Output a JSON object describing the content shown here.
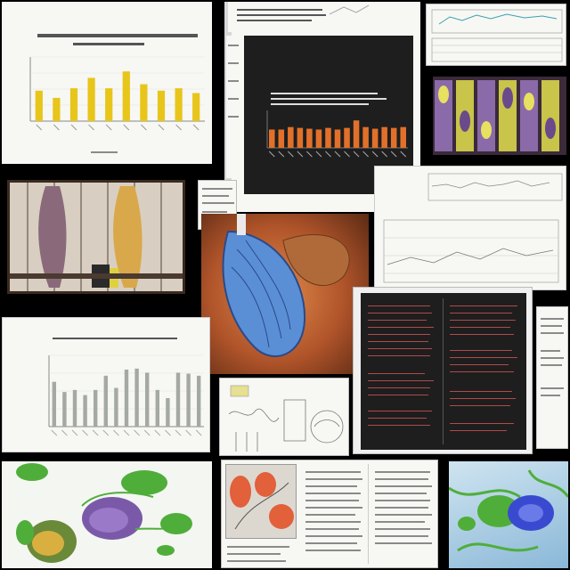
{
  "collage": {
    "panels": [
      {
        "name": "yellow-bar-chart",
        "kind": "chart"
      },
      {
        "name": "dark-orange-bar-chart",
        "kind": "chart"
      },
      {
        "name": "line-chart-sheet",
        "kind": "chart"
      },
      {
        "name": "purple-yellow-pattern",
        "kind": "illustration"
      },
      {
        "name": "anatomical-muscle-panel",
        "kind": "illustration"
      },
      {
        "name": "blue-organ-illustration",
        "kind": "illustration"
      },
      {
        "name": "dark-text-document",
        "kind": "document"
      },
      {
        "name": "gray-bar-chart",
        "kind": "chart"
      },
      {
        "name": "sketch-diagram-sheet",
        "kind": "diagram"
      },
      {
        "name": "green-3d-molecules",
        "kind": "illustration"
      },
      {
        "name": "red-figure-paper",
        "kind": "paper"
      },
      {
        "name": "green-blue-3d-render",
        "kind": "illustration"
      }
    ]
  },
  "colors": {
    "yellow_bar": "#e8c51a",
    "orange_bar": "#e2702a",
    "gray_bar": "#a4a9a4",
    "organ_blue": "#5a8fd6",
    "organ_bg": "#c2642a",
    "green": "#4fae3a",
    "purple": "#7a5aa8"
  },
  "chart_data": [
    {
      "type": "bar",
      "categories": [
        "",
        "",
        "",
        "",
        "",
        "",
        "",
        "",
        "",
        ""
      ],
      "values": [
        38,
        29,
        41,
        54,
        41,
        62,
        46,
        38,
        41,
        35
      ],
      "ylim": [
        0,
        80
      ],
      "grid": true,
      "legend": "none"
    },
    {
      "type": "bar",
      "categories": [
        "",
        "",
        "",
        "",
        "",
        "",
        "",
        "",
        "",
        "",
        "",
        "",
        "",
        "",
        ""
      ],
      "values": [
        22,
        22,
        25,
        24,
        23,
        22,
        24,
        22,
        24,
        33,
        25,
        23,
        25,
        24,
        25
      ],
      "ylim": [
        0,
        45
      ],
      "grid": false,
      "legend": "none"
    },
    {
      "type": "bar",
      "categories": [
        "",
        "",
        "",
        "",
        "",
        "",
        "",
        "",
        "",
        "",
        "",
        "",
        "",
        "",
        ""
      ],
      "values": [
        44,
        34,
        36,
        31,
        36,
        50,
        38,
        56,
        57,
        53,
        36,
        28,
        53,
        52,
        50
      ],
      "ylim": [
        0,
        70
      ],
      "grid": true,
      "legend": "none"
    }
  ]
}
